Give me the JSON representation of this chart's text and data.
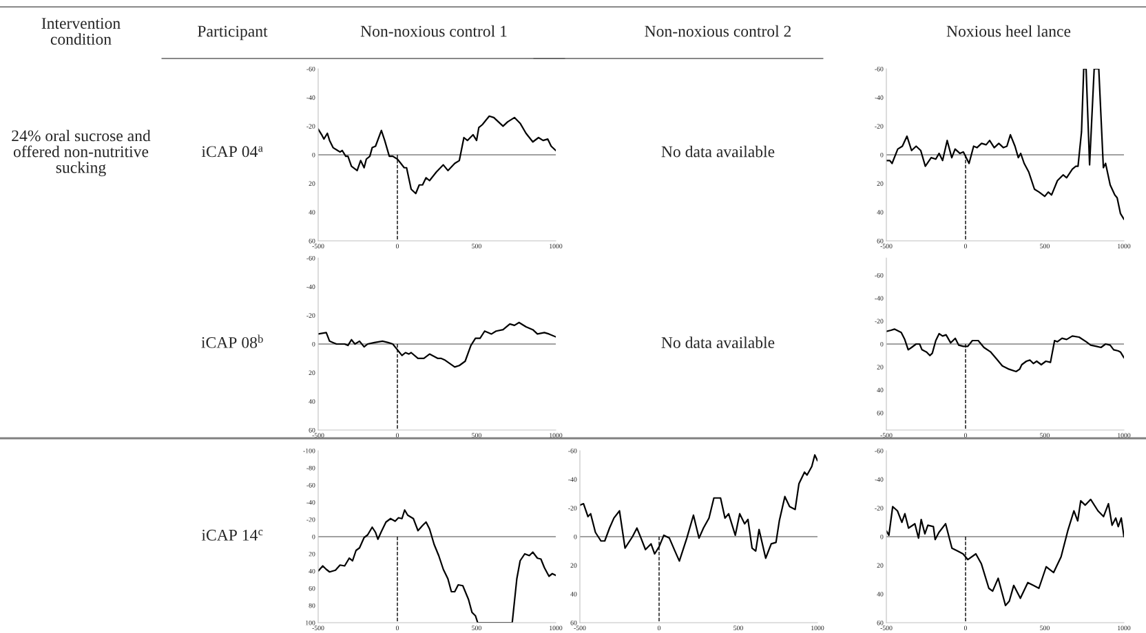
{
  "chart_data": [
    {
      "type": "line",
      "xlim": [
        -500,
        1000
      ],
      "xticks": [
        -500,
        0,
        500,
        1000
      ],
      "ylim": [
        60,
        -60
      ],
      "yticks": [
        -60,
        -40,
        -20,
        0,
        20,
        40,
        60
      ],
      "ref_lines": [
        {
          "axis": "y",
          "value": 0,
          "color": "#808080"
        },
        {
          "axis": "x",
          "value": 0,
          "line_style": "dashed",
          "color": "#000000"
        }
      ],
      "series": [
        {
          "color": "#000000",
          "x": [
            -500,
            -478,
            -464,
            -442,
            -428,
            -406,
            -377,
            -362,
            -348,
            -326,
            -312,
            -290,
            -254,
            -232,
            -210,
            -196,
            -174,
            -159,
            -138,
            -101,
            -80,
            -51,
            -29,
            0,
            22,
            43,
            58,
            87,
            116,
            138,
            159,
            181,
            203,
            246,
            290,
            319,
            362,
            391,
            420,
            442,
            478,
            500,
            514,
            536,
            580,
            609,
            667,
            696,
            739,
            775,
            812,
            855,
            891,
            920,
            949,
            971,
            1000
          ],
          "values": [
            -18,
            -14,
            -11,
            -15,
            -10,
            -5,
            -3,
            -2,
            -3,
            1,
            1,
            8,
            11,
            4,
            9,
            3,
            1,
            -5,
            -6,
            -17,
            -10,
            1,
            1,
            3,
            6,
            9,
            9,
            24,
            27,
            21,
            21,
            16,
            18,
            12,
            7,
            11,
            6,
            4,
            -12,
            -10,
            -14,
            -10,
            -19,
            -21,
            -27,
            -26,
            -20,
            -23,
            -26,
            -22,
            -15,
            -9,
            -12,
            -10,
            -11,
            -6,
            -3
          ]
        }
      ]
    },
    {
      "type": "line",
      "xlim": [
        -500,
        1000
      ],
      "xticks": [
        -500,
        0,
        500,
        1000
      ],
      "ylim": [
        60,
        -60
      ],
      "yticks": [
        -60,
        -40,
        -20,
        0,
        20,
        40,
        60
      ],
      "ref_lines": [
        {
          "axis": "y",
          "value": 0,
          "color": "#808080"
        },
        {
          "axis": "x",
          "value": 0,
          "line_style": "dashed",
          "color": "#000000"
        }
      ],
      "series": [
        {
          "color": "#000000",
          "x": [
            -500,
            -478,
            -464,
            -428,
            -399,
            -370,
            -341,
            -312,
            -283,
            -254,
            -217,
            -188,
            -167,
            -145,
            -116,
            -87,
            -66,
            -36,
            -14,
            22,
            51,
            72,
            101,
            130,
            152,
            181,
            210,
            239,
            261,
            283,
            312,
            333,
            348,
            370,
            399,
            435,
            464,
            500,
            522,
            543,
            580,
            616,
            638,
            674,
            696,
            710,
            732,
            746,
            761,
            783,
            812,
            841,
            870,
            884,
            913,
            942,
            957,
            978,
            1000
          ],
          "values": [
            4,
            4,
            6,
            -4,
            -6,
            -13,
            -3,
            -6,
            -3,
            8,
            2,
            3,
            -1,
            4,
            -10,
            2,
            -4,
            -1,
            -2,
            6,
            -6,
            -5,
            -8,
            -7,
            -10,
            -5,
            -8,
            -5,
            -6,
            -14,
            -6,
            2,
            -1,
            6,
            12,
            24,
            26,
            29,
            26,
            28,
            18,
            14,
            16,
            10,
            8,
            8,
            -16,
            -60,
            -60,
            7,
            -60,
            -60,
            9,
            6,
            21,
            28,
            30,
            41,
            45
          ]
        }
      ]
    },
    {
      "type": "line",
      "xlim": [
        -500,
        1000
      ],
      "xticks": [
        -500,
        0,
        500,
        1000
      ],
      "ylim": [
        60,
        -60
      ],
      "yticks": [
        -60,
        -40,
        -20,
        0,
        20,
        40,
        60
      ],
      "ref_lines": [
        {
          "axis": "y",
          "value": 0,
          "color": "#808080"
        },
        {
          "axis": "x",
          "value": 0,
          "line_style": "dashed",
          "color": "#000000"
        }
      ],
      "series": [
        {
          "color": "#000000",
          "x": [
            -500,
            -449,
            -428,
            -406,
            -384,
            -333,
            -312,
            -290,
            -268,
            -239,
            -210,
            -188,
            -145,
            -94,
            -58,
            -29,
            0,
            29,
            51,
            72,
            87,
            130,
            167,
            203,
            254,
            275,
            297,
            362,
            391,
            428,
            464,
            493,
            522,
            551,
            594,
            623,
            667,
            710,
            739,
            768,
            812,
            855,
            884,
            928,
            957,
            1000
          ],
          "values": [
            -7,
            -8,
            -2,
            -1,
            0,
            0,
            1,
            -3,
            0,
            -2,
            2,
            0,
            -1,
            -2,
            -1,
            0,
            4,
            8,
            6,
            7,
            6,
            10,
            10,
            7,
            10,
            10,
            11,
            16,
            15,
            12,
            1,
            -4,
            -4,
            -9,
            -7,
            -9,
            -10,
            -14,
            -13,
            -15,
            -12,
            -10,
            -7,
            -8,
            -7,
            -5
          ]
        }
      ]
    },
    {
      "type": "line",
      "xlim": [
        -500,
        1000
      ],
      "xticks": [
        -500,
        0,
        500,
        1000
      ],
      "ylim": [
        75,
        -75
      ],
      "yticks": [
        -60,
        -40,
        -20,
        0,
        20,
        40,
        60
      ],
      "ref_lines": [
        {
          "axis": "y",
          "value": 0,
          "color": "#808080"
        },
        {
          "axis": "x",
          "value": 0,
          "line_style": "dashed",
          "color": "#000000"
        }
      ],
      "series": [
        {
          "color": "#000000",
          "x": [
            -500,
            -471,
            -449,
            -406,
            -384,
            -362,
            -341,
            -312,
            -290,
            -275,
            -246,
            -225,
            -210,
            -188,
            -167,
            -145,
            -123,
            -94,
            -65,
            -43,
            -14,
            14,
            43,
            80,
            116,
            159,
            196,
            232,
            275,
            319,
            341,
            355,
            384,
            406,
            428,
            449,
            478,
            507,
            536,
            562,
            580,
            609,
            638,
            674,
            717,
            761,
            790,
            826,
            855,
            884,
            913,
            935,
            964,
            978,
            1000
          ],
          "values": [
            -11,
            -12,
            -13,
            -10,
            -4,
            5,
            3,
            0,
            0,
            5,
            7,
            10,
            8,
            -3,
            -9,
            -7,
            -8,
            -1,
            -5,
            1,
            2,
            2,
            -3,
            -3,
            3,
            7,
            13,
            19,
            22,
            24,
            22,
            18,
            15,
            14,
            17,
            15,
            18,
            15,
            16,
            -3,
            -2,
            -5,
            -4,
            -7,
            -6,
            -2,
            1,
            2,
            3,
            0,
            1,
            5,
            6,
            7,
            12
          ]
        }
      ]
    },
    {
      "type": "line",
      "xlim": [
        -500,
        1000
      ],
      "xticks": [
        -500,
        0,
        500,
        1000
      ],
      "ylim": [
        100,
        -100
      ],
      "yticks": [
        -100,
        -80,
        -60,
        -40,
        -20,
        0,
        20,
        40,
        60,
        80,
        100
      ],
      "ref_lines": [
        {
          "axis": "y",
          "value": 0,
          "color": "#808080"
        },
        {
          "axis": "x",
          "value": 0,
          "line_style": "dashed",
          "color": "#000000"
        }
      ],
      "series": [
        {
          "color": "#000000",
          "x": [
            -500,
            -471,
            -449,
            -428,
            -391,
            -362,
            -333,
            -304,
            -283,
            -261,
            -239,
            -210,
            -188,
            -159,
            -138,
            -123,
            -101,
            -72,
            -43,
            -14,
            7,
            29,
            46,
            65,
            101,
            130,
            159,
            181,
            203,
            232,
            261,
            290,
            319,
            341,
            362,
            384,
            413,
            449,
            471,
            493,
            507,
            616,
            725,
            754,
            775,
            804,
            833,
            855,
            884,
            906,
            928,
            957,
            978,
            1000
          ],
          "values": [
            40,
            34,
            38,
            41,
            39,
            33,
            34,
            25,
            28,
            16,
            13,
            1,
            -2,
            -11,
            -5,
            3,
            -6,
            -17,
            -21,
            -18,
            -22,
            -21,
            -31,
            -25,
            -21,
            -7,
            -13,
            -17,
            -9,
            9,
            22,
            38,
            49,
            64,
            64,
            56,
            57,
            73,
            88,
            92,
            100,
            null,
            100,
            49,
            28,
            20,
            22,
            18,
            25,
            26,
            36,
            46,
            43,
            45
          ]
        }
      ]
    },
    {
      "type": "line",
      "xlim": [
        -500,
        1000
      ],
      "xticks": [
        -500,
        0,
        500,
        1000
      ],
      "ylim": [
        60,
        -60
      ],
      "yticks": [
        -60,
        -40,
        -20,
        0,
        20,
        40,
        60
      ],
      "ref_lines": [
        {
          "axis": "y",
          "value": 0,
          "color": "#808080"
        },
        {
          "axis": "x",
          "value": 0,
          "line_style": "dashed",
          "color": "#000000"
        }
      ],
      "series": [
        {
          "color": "#000000",
          "x": [
            -500,
            -477,
            -449,
            -432,
            -402,
            -367,
            -343,
            -313,
            -285,
            -250,
            -215,
            -168,
            -140,
            -114,
            -86,
            -51,
            -28,
            0,
            30,
            65,
            100,
            128,
            175,
            217,
            252,
            280,
            315,
            346,
            388,
            416,
            439,
            481,
            509,
            540,
            561,
            587,
            610,
            631,
            673,
            708,
            738,
            759,
            794,
            824,
            859,
            883,
            918,
            934,
            964,
            983,
            1000
          ],
          "values": [
            -22,
            -23,
            -14,
            -16,
            -3,
            3,
            3,
            -6,
            -13,
            -18,
            8,
            0,
            -6,
            1,
            9,
            5,
            12,
            7,
            -1,
            1,
            10,
            17,
            1,
            -15,
            1,
            -6,
            -13,
            -27,
            -27,
            -13,
            -16,
            -1,
            -16,
            -9,
            -12,
            8,
            10,
            -5,
            15,
            5,
            4,
            -11,
            -28,
            -21,
            -19,
            -37,
            -45,
            -43,
            -49,
            -57,
            -53
          ]
        }
      ]
    },
    {
      "type": "line",
      "xlim": [
        -500,
        1000
      ],
      "xticks": [
        -500,
        0,
        500,
        1000
      ],
      "ylim": [
        60,
        -60
      ],
      "yticks": [
        -60,
        -40,
        -20,
        0,
        20,
        40,
        60
      ],
      "ref_lines": [
        {
          "axis": "y",
          "value": 0,
          "color": "#808080"
        },
        {
          "axis": "x",
          "value": 0,
          "line_style": "dashed",
          "color": "#000000"
        }
      ],
      "series": [
        {
          "color": "#000000",
          "x": [
            -500,
            -484,
            -460,
            -430,
            -402,
            -383,
            -360,
            -320,
            -297,
            -280,
            -257,
            -238,
            -203,
            -192,
            -168,
            -126,
            -86,
            -51,
            -16,
            14,
            65,
            100,
            147,
            171,
            206,
            252,
            276,
            304,
            346,
            393,
            428,
            463,
            509,
            556,
            603,
            645,
            684,
            708,
            727,
            755,
            790,
            836,
            871,
            902,
            925,
            948,
            964,
            983,
            1000
          ],
          "values": [
            -4,
            -1,
            -21,
            -18,
            -10,
            -16,
            -6,
            -9,
            1,
            -12,
            -2,
            -8,
            -7,
            2,
            -3,
            -9,
            8,
            10,
            12,
            16,
            12,
            19,
            36,
            38,
            29,
            48,
            45,
            34,
            43,
            32,
            34,
            36,
            21,
            25,
            14,
            -4,
            -18,
            -11,
            -25,
            -22,
            -26,
            -18,
            -14,
            -23,
            -8,
            -13,
            -7,
            -13,
            0
          ]
        }
      ]
    },
    {
      "type": "other",
      "annotations": [
        "Intervention condition",
        "Participant",
        "Non-noxious control 1",
        "Non-noxious control 2",
        "Noxious heel lance",
        "24% oral sucrose and offered non-nutritive sucking",
        "iCAP 04$^{a}$",
        "iCAP 08$^{b}$",
        "iCAP 14$^{c}$",
        "No data available",
        "No data available"
      ]
    }
  ]
}
